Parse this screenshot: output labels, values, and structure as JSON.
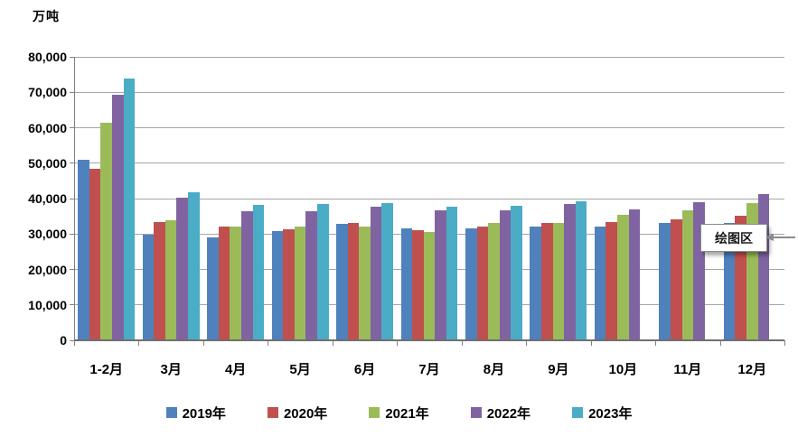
{
  "chart_data": {
    "type": "bar",
    "unit_label": "万吨",
    "categories": [
      "1-2月",
      "3月",
      "4月",
      "5月",
      "6月",
      "7月",
      "8月",
      "9月",
      "10月",
      "11月",
      "12月"
    ],
    "series": [
      {
        "name": "2019年",
        "color": "#4F81BD",
        "values": [
          51000,
          29700,
          29000,
          30800,
          32800,
          31500,
          31600,
          32100,
          32200,
          33000,
          33200
        ]
      },
      {
        "name": "2020年",
        "color": "#C0504D",
        "values": [
          48300,
          33500,
          32100,
          31300,
          33000,
          31100,
          32000,
          33000,
          33400,
          34200,
          35100
        ]
      },
      {
        "name": "2021年",
        "color": "#9BBB59",
        "values": [
          61500,
          34000,
          32200,
          32100,
          32000,
          30700,
          33100,
          33100,
          35300,
          36800,
          38600
        ]
      },
      {
        "name": "2022年",
        "color": "#8064A2",
        "values": [
          69300,
          40200,
          36400,
          36400,
          37600,
          36600,
          36600,
          38500,
          36900,
          38900,
          41400
        ]
      },
      {
        "name": "2023年",
        "color": "#4BACC6",
        "values": [
          73800,
          41900,
          38300,
          38400,
          38700,
          37600,
          37900,
          39200,
          null,
          null,
          null
        ]
      }
    ],
    "ylim": [
      0,
      80000
    ],
    "y_tick_interval": 10000,
    "y_tick_labels": [
      "0",
      "10,000",
      "20,000",
      "30,000",
      "40,000",
      "50,000",
      "60,000",
      "70,000",
      "80,000"
    ],
    "grid": true,
    "legend_position": "bottom"
  },
  "tooltip": {
    "text": "绘图区"
  },
  "colors": {
    "background": "#FFFFFF",
    "gridline": "#A6A6A6",
    "axis": "#808080",
    "text": "#000000"
  }
}
